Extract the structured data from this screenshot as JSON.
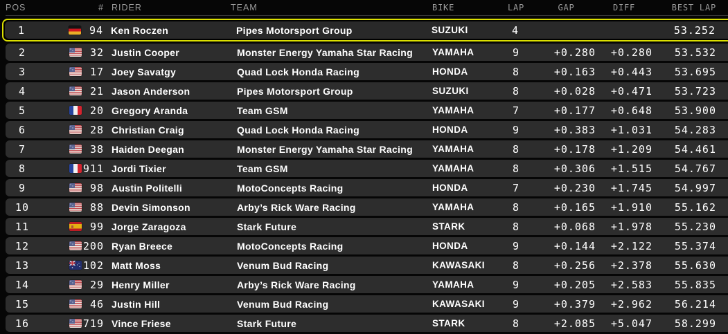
{
  "colors": {
    "background": "#060606",
    "row_bg": "#2d2d2d",
    "row_highlight_bg": "#292929",
    "highlight": "#dce000",
    "header_text": "#9c9c9c",
    "text": "#ffffff"
  },
  "header": {
    "pos": "POS",
    "num": "#",
    "rider": "RIDER",
    "team": "TEAM",
    "bike": "BIKE",
    "lap": "LAP",
    "gap": "GAP",
    "diff": "DIFF",
    "best": "BEST LAP"
  },
  "rows": [
    {
      "pos": "1",
      "flag": "de",
      "num": "94",
      "rider": "Ken Roczen",
      "team": "Pipes Motorsport Group",
      "bike": "SUZUKI",
      "lap": "4",
      "gap": "",
      "diff": "",
      "best": "53.252",
      "highlighted": true
    },
    {
      "pos": "2",
      "flag": "us",
      "num": "32",
      "rider": "Justin Cooper",
      "team": "Monster Energy Yamaha Star Racing",
      "bike": "YAMAHA",
      "lap": "9",
      "gap": "+0.280",
      "diff": "+0.280",
      "best": "53.532",
      "highlighted": false
    },
    {
      "pos": "3",
      "flag": "us",
      "num": "17",
      "rider": "Joey Savatgy",
      "team": "Quad Lock Honda Racing",
      "bike": "HONDA",
      "lap": "8",
      "gap": "+0.163",
      "diff": "+0.443",
      "best": "53.695",
      "highlighted": false
    },
    {
      "pos": "4",
      "flag": "us",
      "num": "21",
      "rider": "Jason Anderson",
      "team": "Pipes Motorsport Group",
      "bike": "SUZUKI",
      "lap": "8",
      "gap": "+0.028",
      "diff": "+0.471",
      "best": "53.723",
      "highlighted": false
    },
    {
      "pos": "5",
      "flag": "fr",
      "num": "20",
      "rider": "Gregory Aranda",
      "team": "Team GSM",
      "bike": "YAMAHA",
      "lap": "7",
      "gap": "+0.177",
      "diff": "+0.648",
      "best": "53.900",
      "highlighted": false
    },
    {
      "pos": "6",
      "flag": "us",
      "num": "28",
      "rider": "Christian Craig",
      "team": "Quad Lock Honda Racing",
      "bike": "HONDA",
      "lap": "9",
      "gap": "+0.383",
      "diff": "+1.031",
      "best": "54.283",
      "highlighted": false
    },
    {
      "pos": "7",
      "flag": "us",
      "num": "38",
      "rider": "Haiden Deegan",
      "team": "Monster Energy Yamaha Star Racing",
      "bike": "YAMAHA",
      "lap": "8",
      "gap": "+0.178",
      "diff": "+1.209",
      "best": "54.461",
      "highlighted": false
    },
    {
      "pos": "8",
      "flag": "fr",
      "num": "911",
      "rider": "Jordi Tixier",
      "team": "Team GSM",
      "bike": "YAMAHA",
      "lap": "8",
      "gap": "+0.306",
      "diff": "+1.515",
      "best": "54.767",
      "highlighted": false
    },
    {
      "pos": "9",
      "flag": "us",
      "num": "98",
      "rider": "Austin Politelli",
      "team": "MotoConcepts Racing",
      "bike": "HONDA",
      "lap": "7",
      "gap": "+0.230",
      "diff": "+1.745",
      "best": "54.997",
      "highlighted": false
    },
    {
      "pos": "10",
      "flag": "us",
      "num": "88",
      "rider": "Devin Simonson",
      "team": "Arby’s Rick Ware Racing",
      "bike": "YAMAHA",
      "lap": "8",
      "gap": "+0.165",
      "diff": "+1.910",
      "best": "55.162",
      "highlighted": false
    },
    {
      "pos": "11",
      "flag": "es",
      "num": "99",
      "rider": "Jorge Zaragoza",
      "team": "Stark Future",
      "bike": "STARK",
      "lap": "8",
      "gap": "+0.068",
      "diff": "+1.978",
      "best": "55.230",
      "highlighted": false
    },
    {
      "pos": "12",
      "flag": "us",
      "num": "200",
      "rider": "Ryan Breece",
      "team": "MotoConcepts Racing",
      "bike": "HONDA",
      "lap": "9",
      "gap": "+0.144",
      "diff": "+2.122",
      "best": "55.374",
      "highlighted": false
    },
    {
      "pos": "13",
      "flag": "au",
      "num": "102",
      "rider": "Matt Moss",
      "team": "Venum Bud Racing",
      "bike": "KAWASAKI",
      "lap": "8",
      "gap": "+0.256",
      "diff": "+2.378",
      "best": "55.630",
      "highlighted": false
    },
    {
      "pos": "14",
      "flag": "us",
      "num": "29",
      "rider": "Henry Miller",
      "team": "Arby’s Rick Ware Racing",
      "bike": "YAMAHA",
      "lap": "9",
      "gap": "+0.205",
      "diff": "+2.583",
      "best": "55.835",
      "highlighted": false
    },
    {
      "pos": "15",
      "flag": "us",
      "num": "46",
      "rider": "Justin Hill",
      "team": "Venum Bud Racing",
      "bike": "KAWASAKI",
      "lap": "9",
      "gap": "+0.379",
      "diff": "+2.962",
      "best": "56.214",
      "highlighted": false
    },
    {
      "pos": "16",
      "flag": "us",
      "num": "719",
      "rider": "Vince Friese",
      "team": "Stark Future",
      "bike": "STARK",
      "lap": "8",
      "gap": "+2.085",
      "diff": "+5.047",
      "best": "58.299",
      "highlighted": false
    }
  ]
}
